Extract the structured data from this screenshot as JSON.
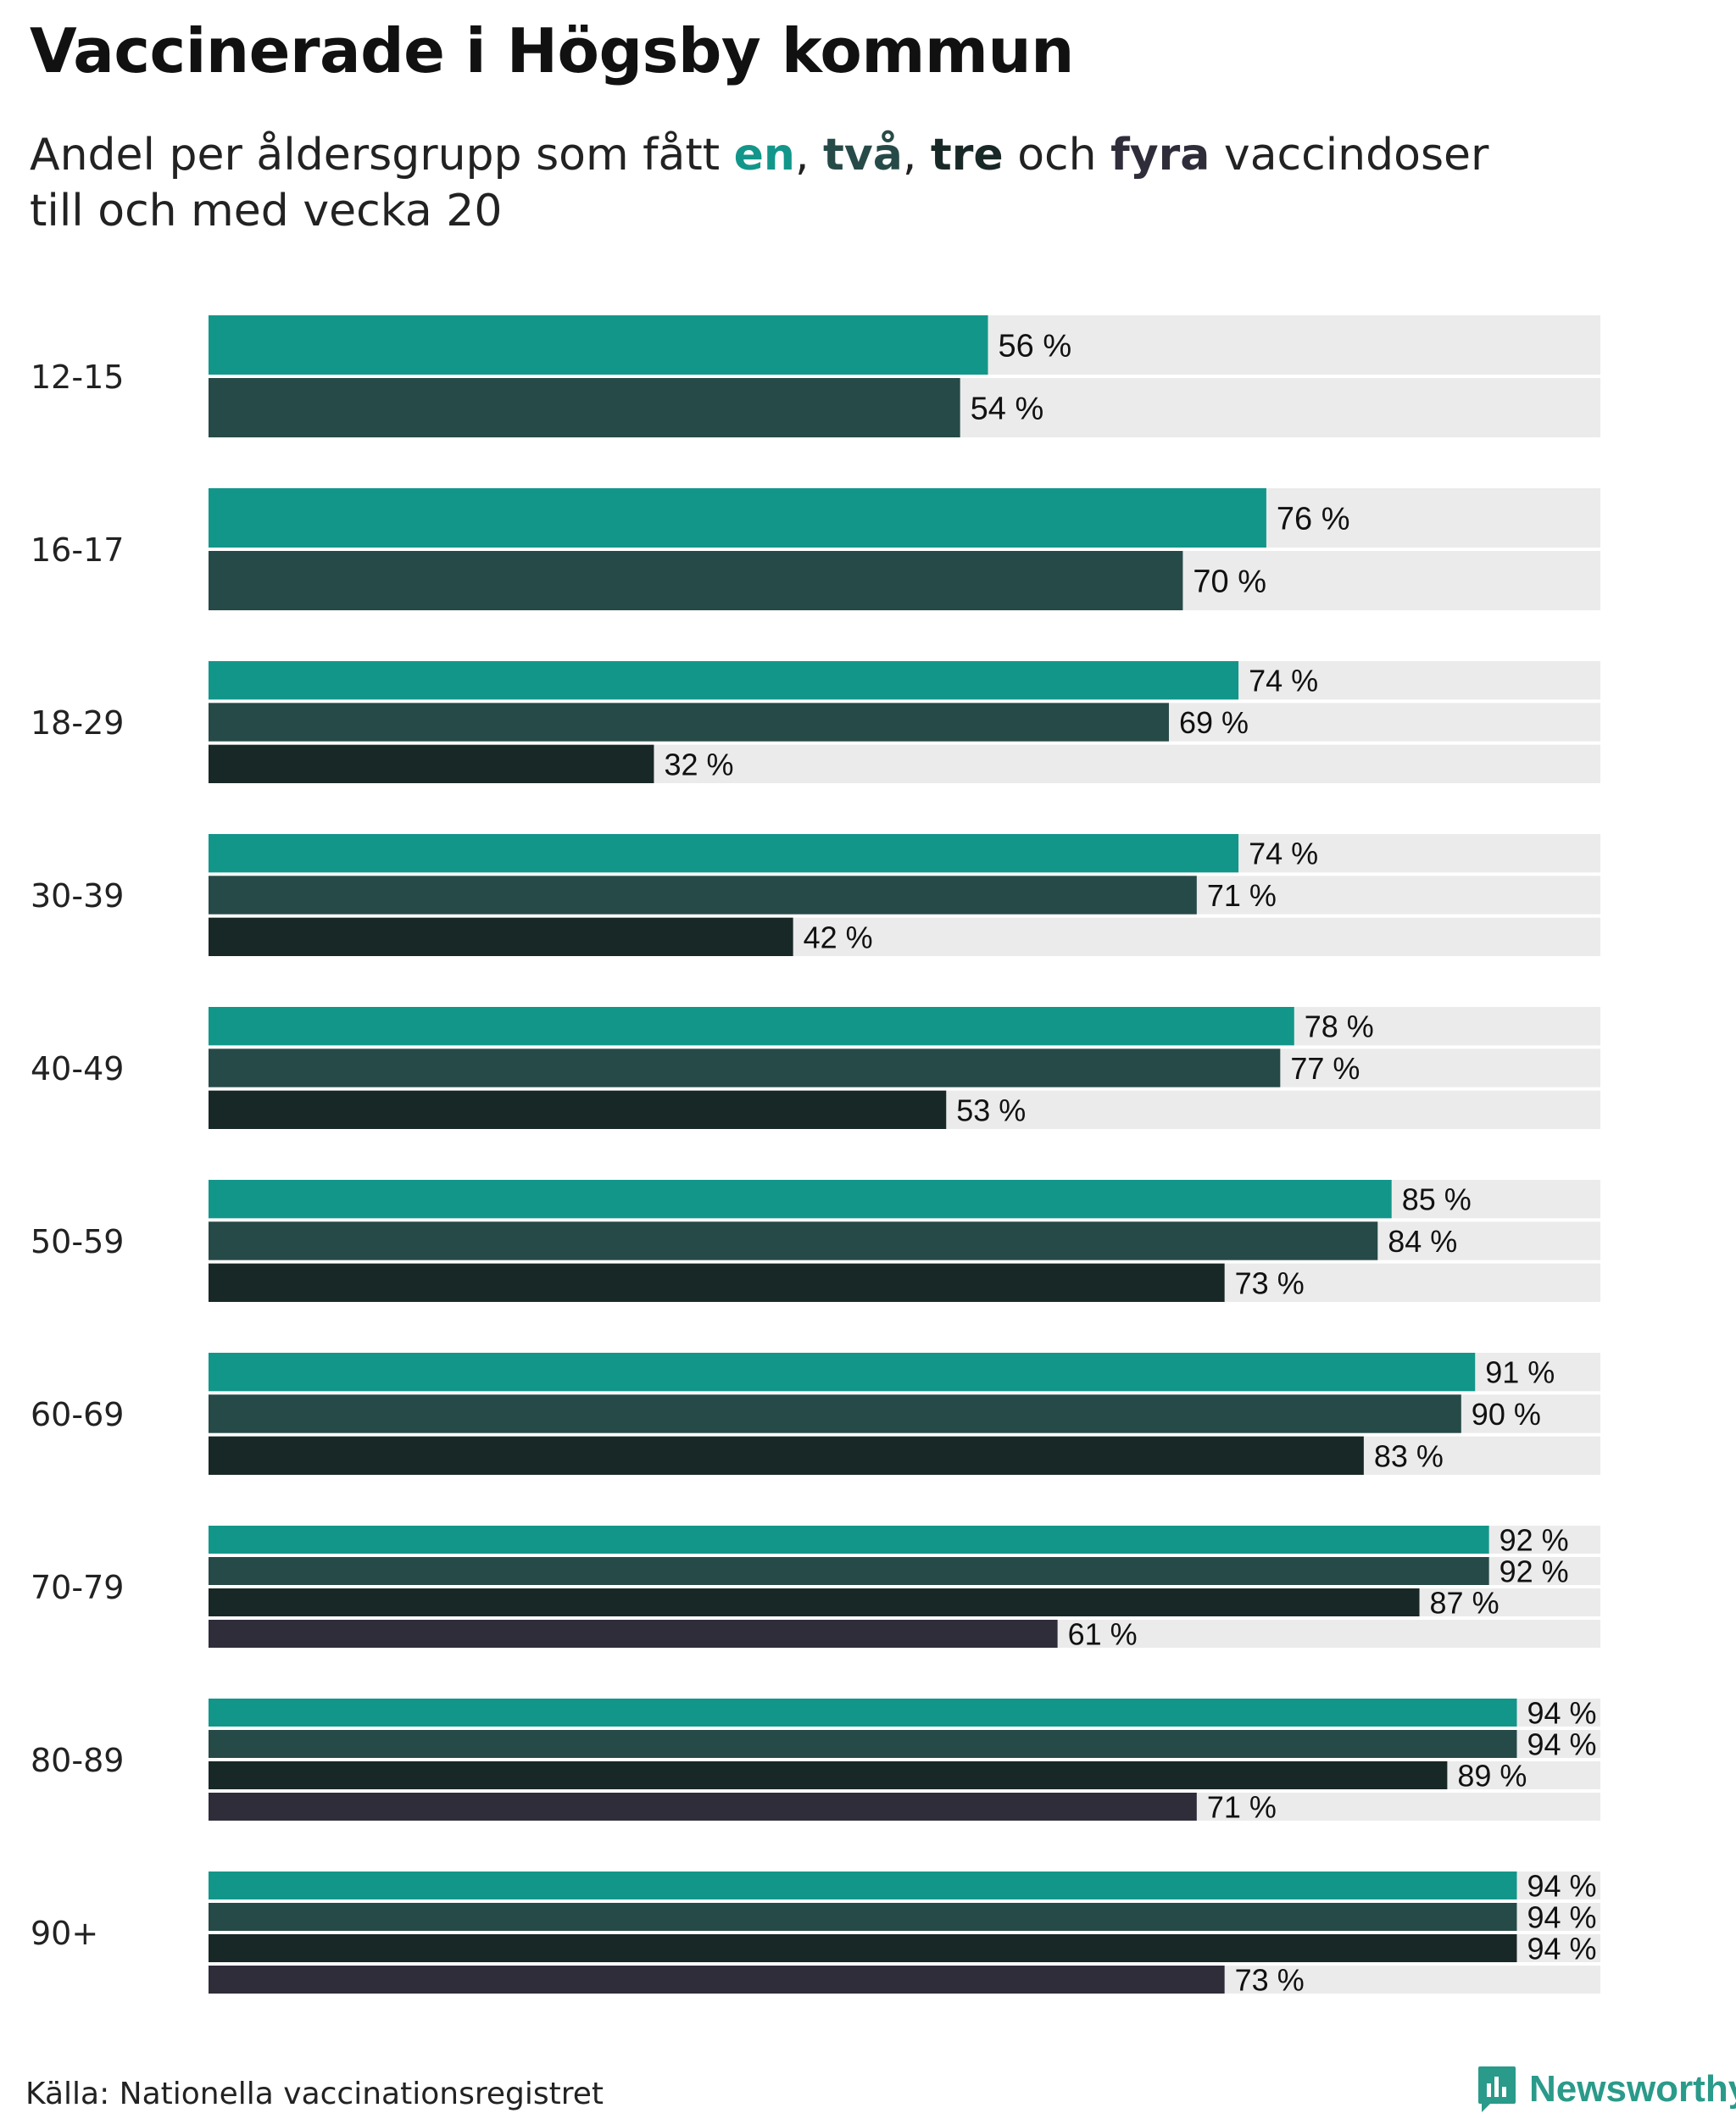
{
  "title": "Vaccinerade i Högsby kommun",
  "subtitle": {
    "prefix": "Andel per åldersgrupp som fått ",
    "dose1": "en",
    "sep1": ", ",
    "dose2": "två",
    "sep2": ", ",
    "dose3": "tre",
    "conj": " och ",
    "dose4": "fyra",
    "suffix_line1": " vaccindoser",
    "line2": "till och med vecka 20"
  },
  "source": "Källa: Nationella vaccinationsregistret",
  "brand": "Newsworthy",
  "colors": {
    "en": "#13968a",
    "två": "#264a47",
    "tre": "#182826",
    "fyra": "#2f2d3a",
    "track": "#ebebeb",
    "brand": "#2a9a8a"
  },
  "chart_data": {
    "type": "bar",
    "orientation": "horizontal",
    "categories": [
      "12-15",
      "16-17",
      "18-29",
      "30-39",
      "40-49",
      "50-59",
      "60-69",
      "70-79",
      "80-89",
      "90+"
    ],
    "series": [
      {
        "name": "en",
        "values": [
          56,
          76,
          74,
          74,
          78,
          85,
          91,
          92,
          94,
          94
        ]
      },
      {
        "name": "två",
        "values": [
          54,
          70,
          69,
          71,
          77,
          84,
          90,
          92,
          94,
          94
        ]
      },
      {
        "name": "tre",
        "values": [
          null,
          null,
          32,
          42,
          53,
          73,
          83,
          87,
          89,
          94
        ]
      },
      {
        "name": "fyra",
        "values": [
          null,
          null,
          null,
          null,
          null,
          null,
          null,
          61,
          71,
          73
        ]
      }
    ],
    "value_suffix": " %",
    "xlim": [
      0,
      100
    ],
    "xlabel": "",
    "ylabel": "",
    "grid": false,
    "legend": "in subtitle"
  }
}
